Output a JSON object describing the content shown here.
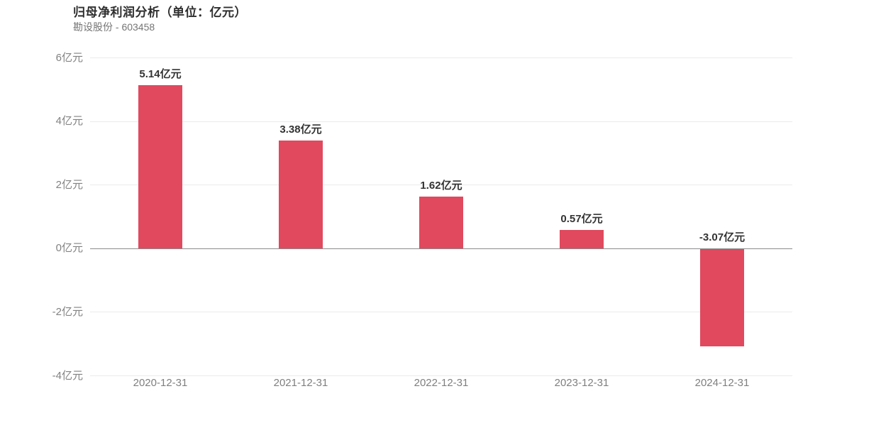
{
  "header": {
    "title": "归母净利润分析（单位：亿元）",
    "subtitle": "勘设股份 - 603458"
  },
  "chart_data": {
    "type": "bar",
    "title": "归母净利润分析（单位：亿元）",
    "subtitle": "勘设股份 - 603458",
    "categories": [
      "2020-12-31",
      "2021-12-31",
      "2022-12-31",
      "2023-12-31",
      "2024-12-31"
    ],
    "values": [
      5.14,
      3.38,
      1.62,
      0.57,
      -3.07
    ],
    "value_labels": [
      "5.14亿元",
      "3.38亿元",
      "1.62亿元",
      "0.57亿元",
      "-3.07亿元"
    ],
    "unit": "亿元",
    "xlabel": "",
    "ylabel": "",
    "ylim": [
      -4,
      6
    ],
    "y_ticks": [
      {
        "value": 6,
        "label": "6亿元"
      },
      {
        "value": 4,
        "label": "4亿元"
      },
      {
        "value": 2,
        "label": "2亿元"
      },
      {
        "value": 0,
        "label": "0亿元"
      },
      {
        "value": -2,
        "label": "-2亿元"
      },
      {
        "value": -4,
        "label": "-4亿元"
      }
    ],
    "grid": true,
    "legend": "none",
    "colors": {
      "bar": "#e0495e",
      "grid_line": "#ebebeb",
      "zero_line": "#8c8c8c",
      "y_tick_label": "#828282",
      "x_tick_label": "#7f7f7f",
      "value_label": "#333333",
      "title": "#2f2f2f",
      "subtitle": "#757575",
      "background": "#ffffff"
    }
  }
}
